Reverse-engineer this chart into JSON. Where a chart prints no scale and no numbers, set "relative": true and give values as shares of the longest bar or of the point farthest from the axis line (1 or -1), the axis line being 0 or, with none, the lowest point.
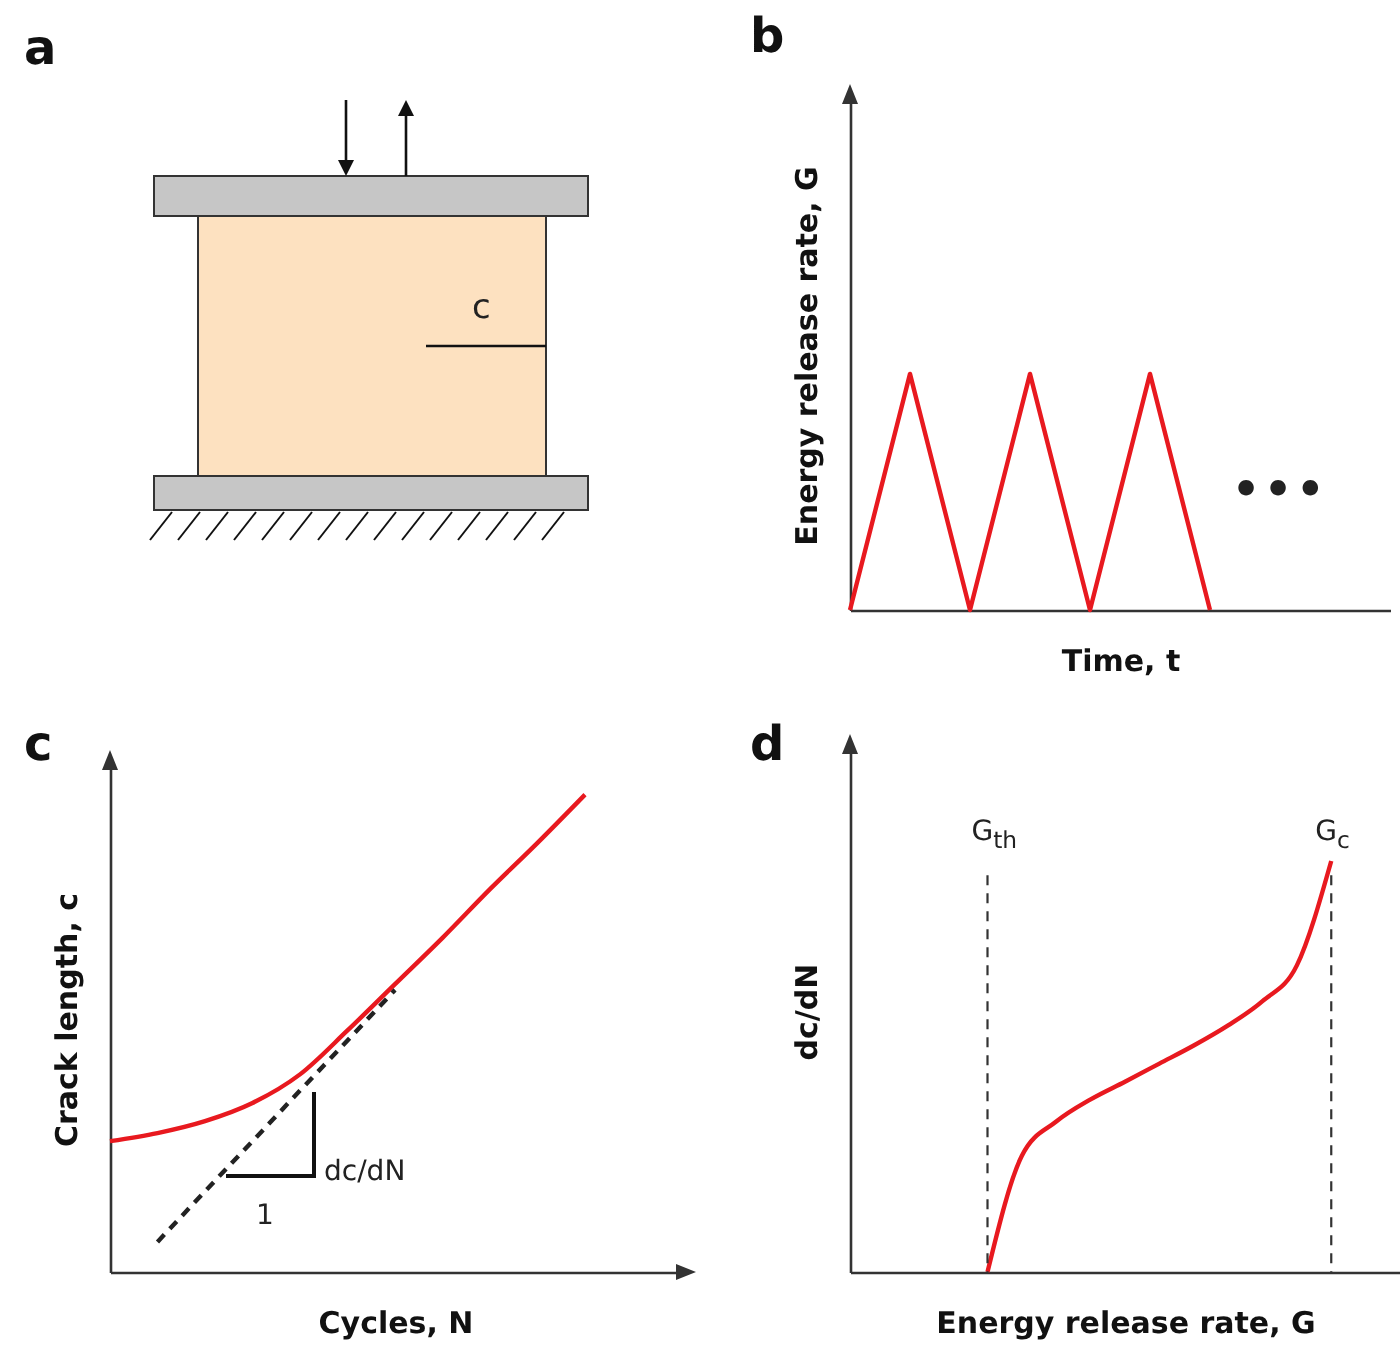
{
  "chart_data": [
    {
      "type": "other",
      "title": "a",
      "annotations": [
        "c"
      ]
    },
    {
      "type": "line",
      "title": "b",
      "xlabel": "Time, t",
      "ylabel": "Energy release rate, G",
      "relative": true,
      "categories": [
        null,
        null,
        null,
        null,
        null,
        null,
        null,
        null,
        null,
        null
      ],
      "series": [
        {
          "color": "#e8191f",
          "values": [
            0,
            1,
            0,
            1,
            0,
            1,
            0,
            null,
            null,
            null
          ]
        }
      ],
      "annotations": [
        "•••"
      ],
      "marker": "none",
      "line_style": "solid"
    },
    {
      "type": "line",
      "title": "c",
      "xlabel": "Cycles, N",
      "ylabel": "Crack length, c",
      "relative": true,
      "categories": [
        null,
        null,
        null,
        null,
        null,
        null,
        null,
        null,
        null,
        null,
        null,
        null,
        null
      ],
      "series": [
        {
          "color": "#e8191f",
          "line_style": "solid",
          "values": [
            0.274,
            0.291,
            0.316,
            0.354,
            0.414,
            0.506,
            0.603,
            0.7,
            0.802,
            0.899,
            1,
            null,
            null
          ]
        },
        {
          "color": "#222222",
          "line_style": "dashed",
          "values": [
            null,
            0.063,
            0.169,
            0.274,
            0.38,
            0.485,
            0.591,
            null,
            null,
            null,
            null,
            null,
            null
          ]
        }
      ],
      "annotations": [
        "dc/dN",
        "1"
      ],
      "marker": "none"
    },
    {
      "type": "line",
      "title": "d",
      "xlabel": "Energy release rate, G",
      "ylabel": "dc/dN",
      "relative": true,
      "categories": [
        null,
        null,
        null,
        null,
        null,
        null,
        null,
        null,
        null,
        null,
        null,
        null,
        null,
        null,
        null,
        null,
        null
      ],
      "series": [
        {
          "color": "#e8191f",
          "values": [
            null,
            null,
            null,
            null,
            0,
            0.283,
            0.366,
            0.42,
            0.463,
            0.507,
            0.551,
            0.6,
            0.659,
            0.746,
            1,
            null,
            null
          ]
        }
      ],
      "annotations": [
        "G$_{th}$",
        "G$_{c}$"
      ],
      "marker": "none",
      "line_style": "solid"
    }
  ]
}
